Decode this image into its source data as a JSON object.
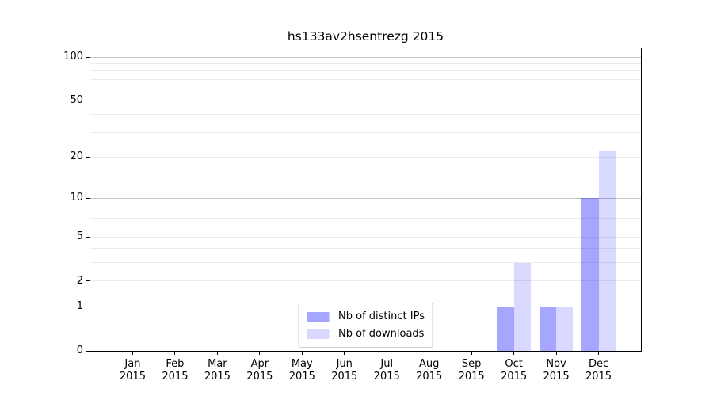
{
  "chart_data": {
    "type": "bar",
    "title": "hs133av2hsentrezg 2015",
    "months": [
      "Jan",
      "Feb",
      "Mar",
      "Apr",
      "May",
      "Jun",
      "Jul",
      "Aug",
      "Sep",
      "Oct",
      "Nov",
      "Dec"
    ],
    "year": "2015",
    "series": [
      {
        "name": "Nb of distinct IPs",
        "color": "rgba(0,0,255,0.35)",
        "values": [
          0,
          0,
          0,
          0,
          0,
          0,
          0,
          0,
          0,
          1,
          1,
          10
        ]
      },
      {
        "name": "Nb of downloads",
        "color": "rgba(0,0,255,0.15)",
        "values": [
          0,
          0,
          0,
          0,
          0,
          0,
          0,
          0,
          0,
          3,
          1,
          22
        ]
      }
    ],
    "y_scale": "log10(1+v)",
    "y_tick_labels": [
      "0",
      "1",
      "2",
      "5",
      "10",
      "20",
      "50",
      "100"
    ],
    "y_tick_values": [
      0,
      1,
      2,
      5,
      10,
      20,
      50,
      100
    ],
    "y_major_gridlines": [
      1,
      10,
      100
    ],
    "y_minor_gridlines": [
      2,
      3,
      4,
      5,
      6,
      7,
      8,
      9,
      20,
      30,
      40,
      50,
      60,
      70,
      80,
      90
    ],
    "y_top": 115,
    "grid": true,
    "legend_position": "lower center",
    "colors": {
      "major_grid": "#c4c4c4",
      "minor_grid": "#ebebeb",
      "spine": "#000000",
      "text": "#000000",
      "legend_border": "#cccccc"
    }
  }
}
